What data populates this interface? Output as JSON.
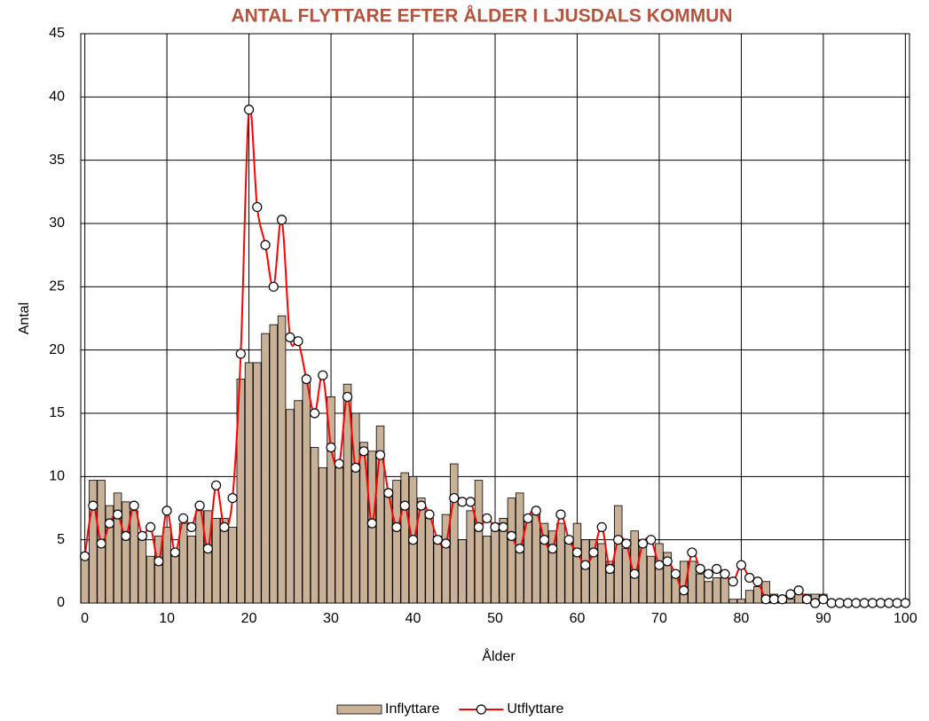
{
  "chart_data": {
    "type": "bar",
    "title": "ANTAL FLYTTARE EFTER ÅLDER I LJUSDALS KOMMUN",
    "x_label": "Ålder",
    "y_label": "Antal",
    "x": [
      0,
      1,
      2,
      3,
      4,
      5,
      6,
      7,
      8,
      9,
      10,
      11,
      12,
      13,
      14,
      15,
      16,
      17,
      18,
      19,
      20,
      21,
      22,
      23,
      24,
      25,
      26,
      27,
      28,
      29,
      30,
      31,
      32,
      33,
      34,
      35,
      36,
      37,
      38,
      39,
      40,
      41,
      42,
      43,
      44,
      45,
      46,
      47,
      48,
      49,
      50,
      51,
      52,
      53,
      54,
      55,
      56,
      57,
      58,
      59,
      60,
      61,
      62,
      63,
      64,
      65,
      66,
      67,
      68,
      69,
      70,
      71,
      72,
      73,
      74,
      75,
      76,
      77,
      78,
      79,
      80,
      81,
      82,
      83,
      84,
      85,
      86,
      87,
      88,
      89,
      90,
      91,
      92,
      93,
      94,
      95,
      96,
      97,
      98,
      99,
      100
    ],
    "xlim": [
      -0.5,
      100.5
    ],
    "xticks": [
      0,
      10,
      20,
      30,
      40,
      50,
      60,
      70,
      80,
      90,
      100
    ],
    "ylim": [
      0,
      45
    ],
    "yticks": [
      0,
      5,
      10,
      15,
      20,
      25,
      30,
      35,
      40,
      45
    ],
    "grid": true,
    "legend": "bottom",
    "series": [
      {
        "name": "Inflyttare",
        "type": "bar",
        "color": "#c9b197",
        "values": [
          3.7,
          9.7,
          9.7,
          7.7,
          8.7,
          8,
          7.3,
          5.3,
          3.7,
          5.3,
          6,
          4,
          6.3,
          5.3,
          7.3,
          7.3,
          6.7,
          6.7,
          6,
          17.7,
          19,
          19,
          21.3,
          22,
          22.7,
          15.3,
          16,
          17.7,
          12.3,
          10.7,
          16.3,
          10.7,
          17.3,
          15,
          12.7,
          12,
          14,
          8.7,
          9.7,
          10.3,
          10,
          8.3,
          6.7,
          5.3,
          7,
          11,
          5,
          7.3,
          9.7,
          5.3,
          6.3,
          6.7,
          8.3,
          8.7,
          6.7,
          7.3,
          6.3,
          5.7,
          6.3,
          5,
          6.3,
          5,
          5,
          4.7,
          3.3,
          7.7,
          4.3,
          5.7,
          5,
          3.7,
          4.7,
          4,
          2.3,
          3.3,
          3.3,
          2.3,
          1.7,
          2,
          2,
          0.3,
          0.3,
          1,
          1.3,
          1.7,
          0.7,
          0.3,
          0.3,
          0.7,
          0.7,
          0.7,
          0.7,
          0,
          0,
          0,
          0,
          0,
          0,
          0,
          0,
          0,
          0
        ]
      },
      {
        "name": "Utflyttare",
        "type": "line",
        "color": "#ff0000",
        "values": [
          3.7,
          7.7,
          4.7,
          6.3,
          7,
          5.3,
          7.7,
          5.3,
          6,
          3.3,
          7.3,
          4,
          6.7,
          6,
          7.7,
          4.3,
          9.3,
          6,
          8.3,
          19.7,
          39,
          31.3,
          28.3,
          25,
          30.3,
          21,
          20.7,
          17.7,
          15,
          18,
          12.3,
          11,
          16.3,
          10.7,
          12,
          6.3,
          11.7,
          8.7,
          6,
          7.7,
          5,
          7.7,
          7,
          5,
          4.7,
          8.3,
          8,
          8,
          6,
          6.7,
          6,
          6,
          5.3,
          4.3,
          6.7,
          7.3,
          5,
          4.3,
          7,
          5,
          4,
          3,
          4,
          6,
          2.7,
          5,
          4.7,
          2.3,
          4.7,
          5,
          3,
          3.3,
          2.3,
          1,
          4,
          2.7,
          2.3,
          2.7,
          2.3,
          1.7,
          3,
          2,
          1.7,
          0.3,
          0.3,
          0.3,
          0.7,
          1,
          0.3,
          0,
          0.3,
          0,
          0,
          0,
          0,
          0,
          0,
          0,
          0,
          0,
          0
        ]
      }
    ]
  }
}
